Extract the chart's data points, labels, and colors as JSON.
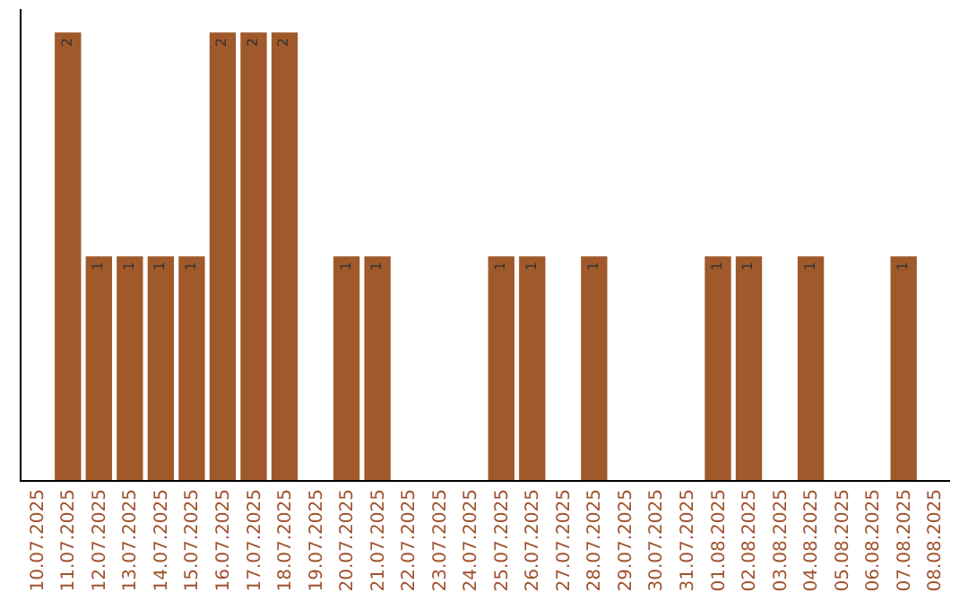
{
  "chart_data": {
    "type": "bar",
    "categories": [
      "10.07.2025",
      "11.07.2025",
      "12.07.2025",
      "13.07.2025",
      "14.07.2025",
      "15.07.2025",
      "16.07.2025",
      "17.07.2025",
      "18.07.2025",
      "19.07.2025",
      "20.07.2025",
      "21.07.2025",
      "22.07.2025",
      "23.07.2025",
      "24.07.2025",
      "25.07.2025",
      "26.07.2025",
      "27.07.2025",
      "28.07.2025",
      "29.07.2025",
      "30.07.2025",
      "31.07.2025",
      "01.08.2025",
      "02.08.2025",
      "03.08.2025",
      "04.08.2025",
      "05.08.2025",
      "06.08.2025",
      "07.08.2025",
      "08.08.2025"
    ],
    "values": [
      0,
      2,
      1,
      1,
      1,
      1,
      2,
      2,
      2,
      0,
      1,
      1,
      0,
      0,
      0,
      1,
      1,
      0,
      1,
      0,
      0,
      0,
      1,
      1,
      0,
      1,
      0,
      0,
      1,
      0
    ],
    "value_labels": [
      null,
      "2",
      "1",
      "1",
      "1",
      "1",
      "2",
      "2",
      "2",
      null,
      "1",
      "1",
      null,
      null,
      null,
      "1",
      "1",
      null,
      "1",
      null,
      null,
      null,
      "1",
      "1",
      null,
      "1",
      null,
      null,
      "1",
      null
    ],
    "color": "#a0592a",
    "tick_labels": "x",
    "grid": false,
    "legend": false
  }
}
